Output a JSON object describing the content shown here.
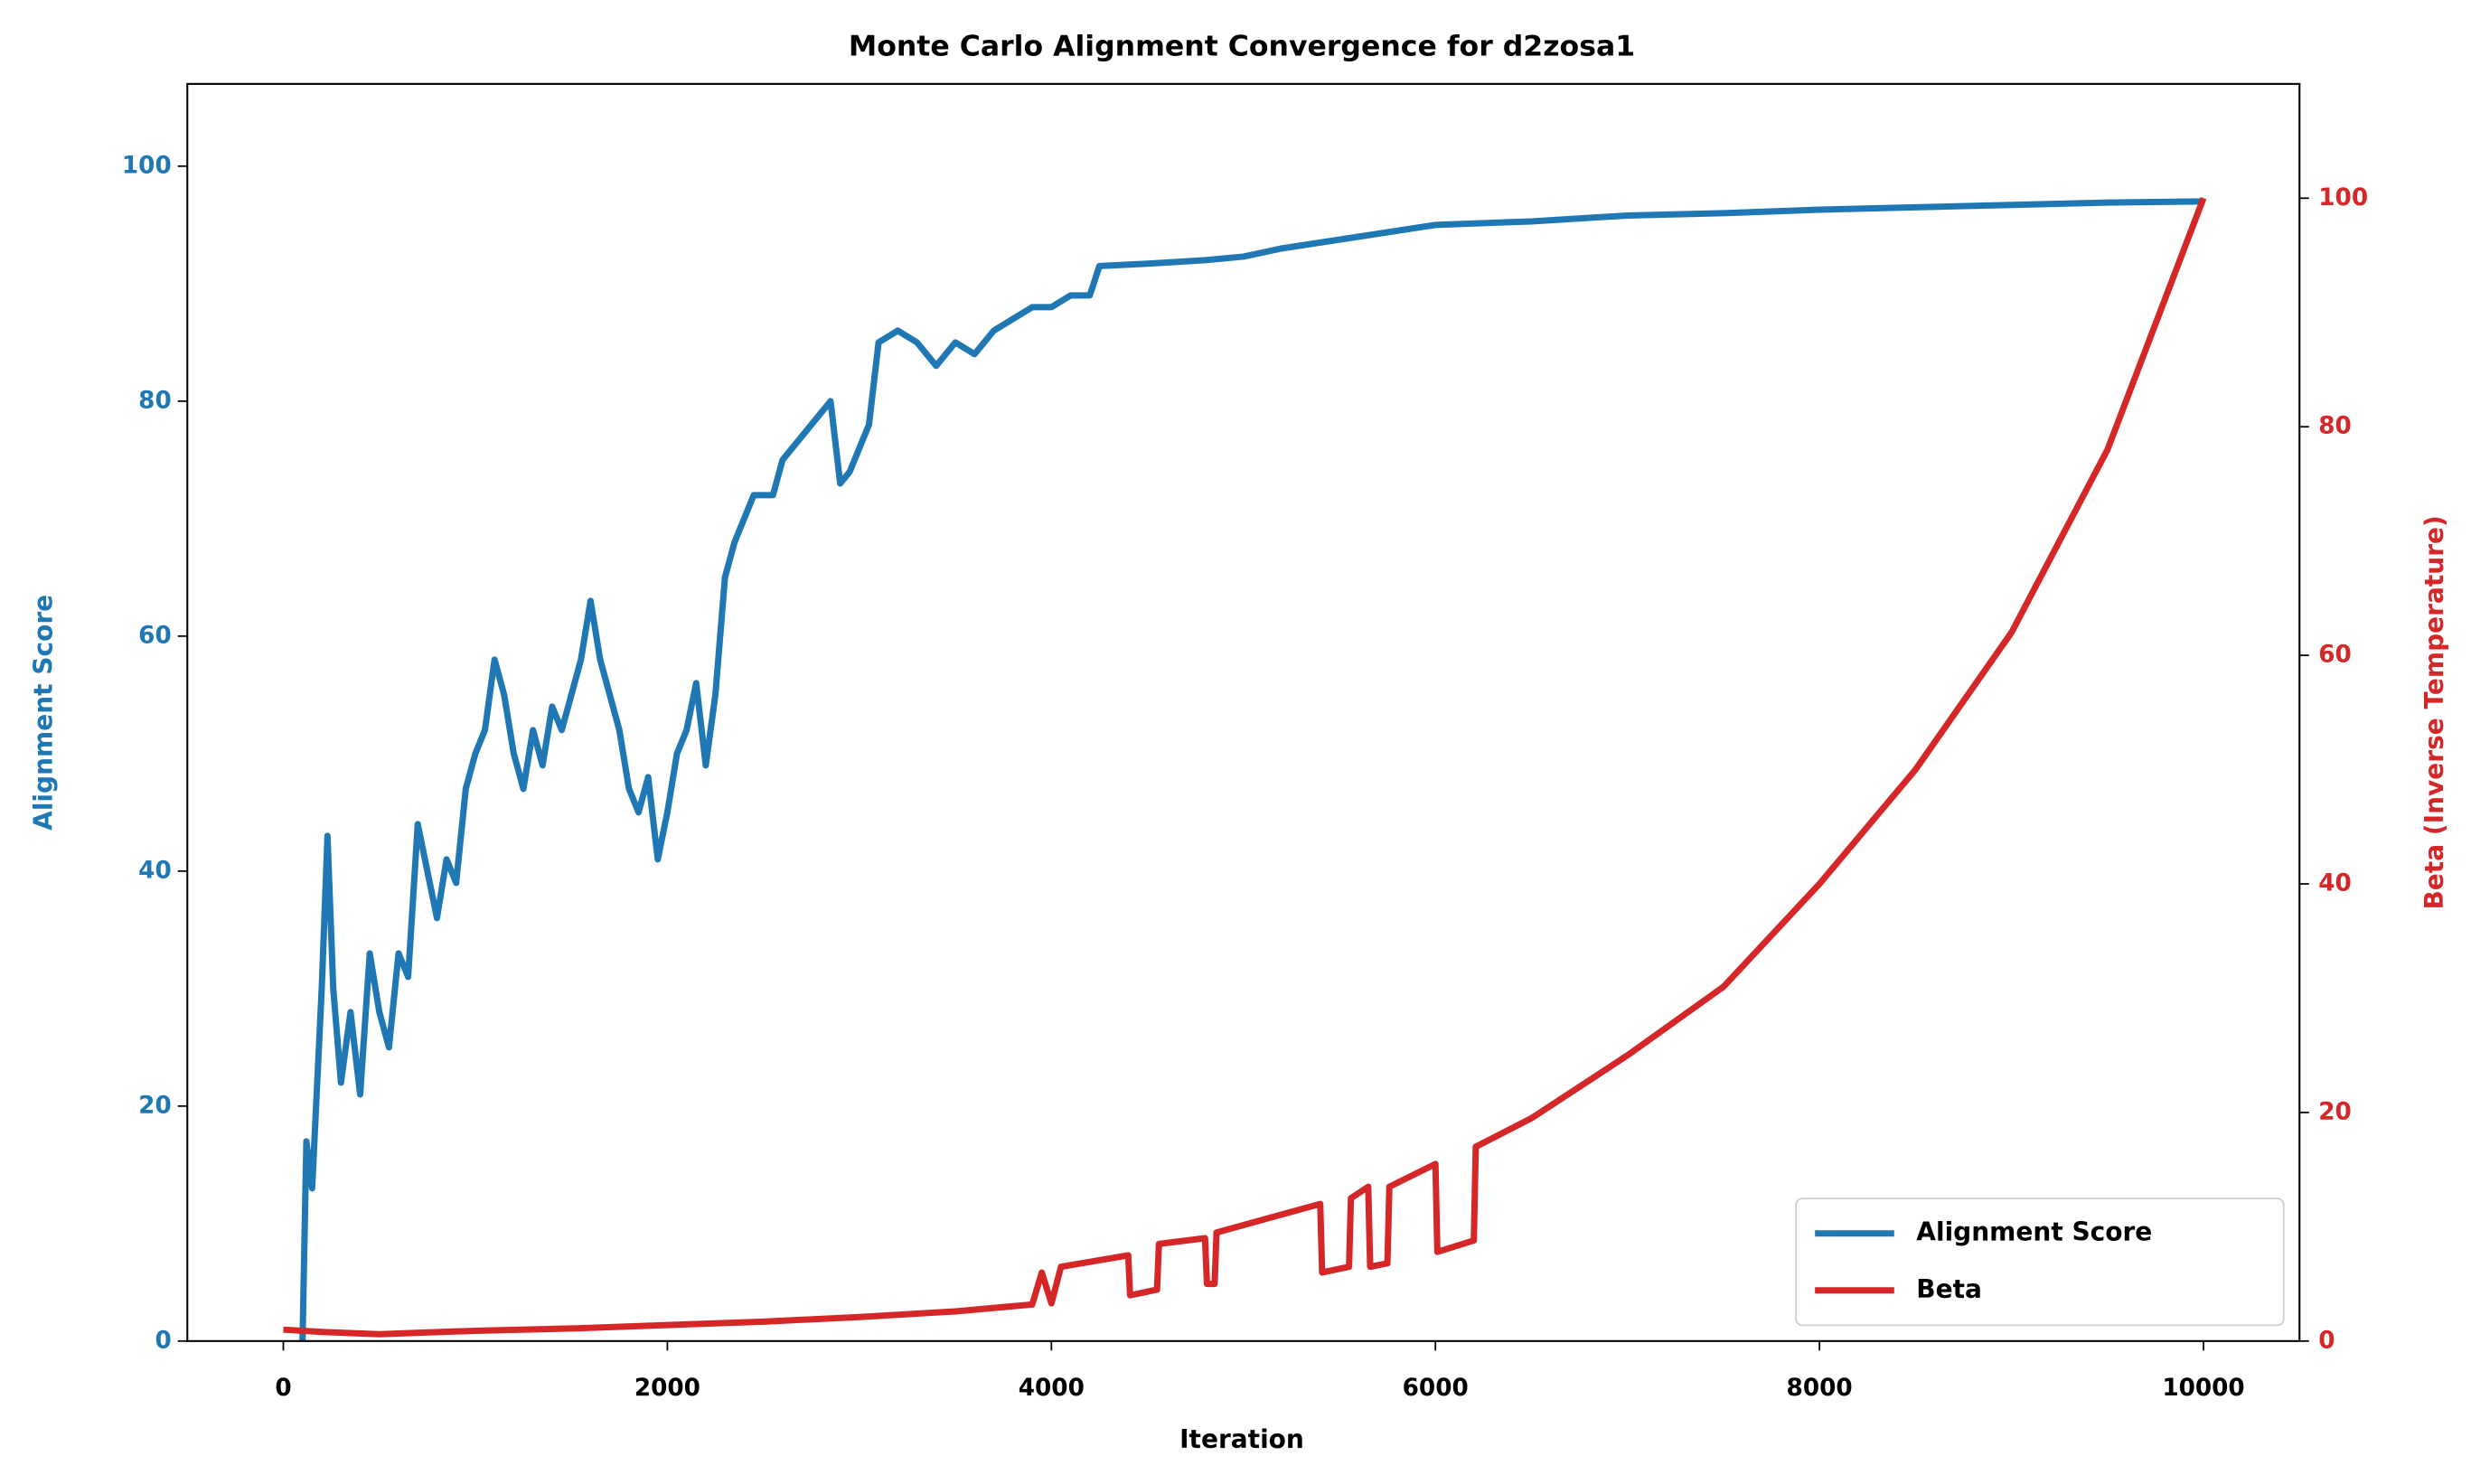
{
  "chart_data": {
    "type": "line",
    "title": "Monte Carlo Alignment Convergence for d2zosa1",
    "xlabel": "Iteration",
    "ylabel": "Alignment Score",
    "y2label": "Beta (Inverse Temperature)",
    "xlim": [
      -500,
      10500
    ],
    "xticks": [
      0,
      2000,
      4000,
      6000,
      8000,
      10000
    ],
    "ylim": [
      0,
      107
    ],
    "yticks": [
      0,
      20,
      40,
      60,
      80,
      100
    ],
    "y2lim": [
      0,
      110
    ],
    "y2ticks": [
      0,
      20,
      40,
      60,
      80,
      100
    ],
    "legend": "lower right",
    "grid": false,
    "series": [
      {
        "name": "Alignment Score",
        "color": "#1f77b4",
        "axis": "y",
        "x": [
          100,
          120,
          150,
          200,
          230,
          260,
          300,
          350,
          400,
          450,
          500,
          550,
          600,
          650,
          700,
          750,
          800,
          850,
          900,
          950,
          1000,
          1050,
          1100,
          1150,
          1200,
          1250,
          1300,
          1350,
          1400,
          1450,
          1500,
          1550,
          1600,
          1650,
          1700,
          1750,
          1800,
          1850,
          1900,
          1950,
          2000,
          2050,
          2100,
          2150,
          2200,
          2250,
          2300,
          2350,
          2400,
          2450,
          2500,
          2550,
          2600,
          2700,
          2800,
          2850,
          2900,
          2950,
          3000,
          3050,
          3100,
          3200,
          3300,
          3400,
          3500,
          3600,
          3700,
          3800,
          3900,
          4000,
          4100,
          4200,
          4250,
          4500,
          4800,
          5000,
          5200,
          5400,
          5600,
          5800,
          6000,
          6500,
          7000,
          7500,
          8000,
          8500,
          9000,
          9500,
          10000
        ],
        "values": [
          0,
          17,
          13,
          30,
          43,
          30,
          22,
          28,
          21,
          33,
          28,
          25,
          33,
          31,
          44,
          40,
          36,
          41,
          39,
          47,
          50,
          52,
          58,
          55,
          50,
          47,
          52,
          49,
          54,
          52,
          55,
          58,
          63,
          58,
          55,
          52,
          47,
          45,
          48,
          41,
          45,
          50,
          52,
          56,
          49,
          55,
          65,
          68,
          70,
          72,
          72,
          72,
          75,
          77,
          79,
          80,
          73,
          74,
          76,
          78,
          85,
          86,
          85,
          83,
          85,
          84,
          86,
          87,
          88,
          88,
          89,
          89,
          91.5,
          91.7,
          92,
          92.3,
          93,
          93.5,
          94,
          94.5,
          95,
          95.3,
          95.8,
          96,
          96.3,
          96.5,
          96.7,
          96.9,
          97
        ]
      },
      {
        "name": "Beta",
        "color": "#d62728",
        "axis": "y2",
        "x": [
          0,
          200,
          500,
          1000,
          1500,
          2000,
          2500,
          3000,
          3500,
          3900,
          3950,
          4000,
          4050,
          4400,
          4410,
          4550,
          4560,
          4800,
          4810,
          4850,
          4860,
          5400,
          5410,
          5550,
          5560,
          5650,
          5660,
          5750,
          5760,
          6000,
          6010,
          6200,
          6210,
          6500,
          7000,
          7500,
          8000,
          8500,
          9000,
          9500,
          10000
        ],
        "values": [
          1,
          0.8,
          0.6,
          0.9,
          1.1,
          1.4,
          1.7,
          2.1,
          2.6,
          3.2,
          6,
          3.3,
          6.5,
          7.5,
          4,
          4.5,
          8.5,
          9,
          5,
          5,
          9.5,
          12,
          6,
          6.5,
          12.5,
          13.5,
          6.5,
          6.8,
          13.5,
          15.5,
          7.8,
          8.8,
          17,
          19.5,
          25,
          31,
          40,
          50,
          62,
          78,
          100
        ]
      }
    ]
  }
}
